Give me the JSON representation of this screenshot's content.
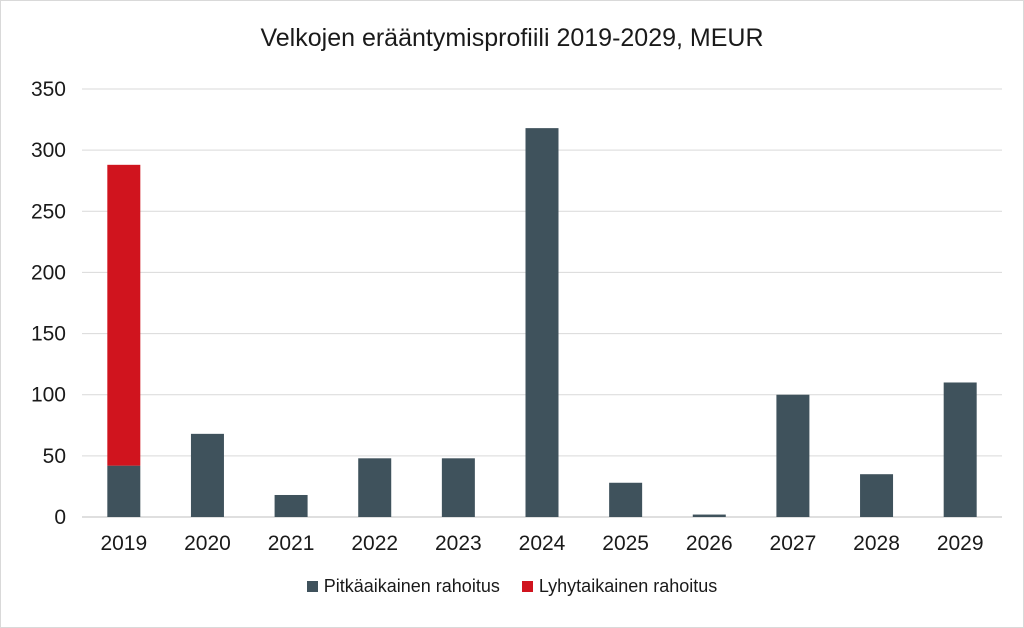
{
  "chart_data": {
    "type": "bar",
    "stacked": true,
    "title": "Velkojen erääntymisprofiili 2019-2029, MEUR",
    "categories": [
      "2019",
      "2020",
      "2021",
      "2022",
      "2023",
      "2024",
      "2025",
      "2026",
      "2027",
      "2028",
      "2029"
    ],
    "series": [
      {
        "name": "Pitkäaikainen rahoitus",
        "color": "#3f525c",
        "values": [
          42,
          68,
          18,
          48,
          48,
          318,
          28,
          2,
          100,
          35,
          110
        ]
      },
      {
        "name": "Lyhytaikainen rahoitus",
        "color": "#d0141e",
        "values": [
          246,
          0,
          0,
          0,
          0,
          0,
          0,
          0,
          0,
          0,
          0
        ]
      }
    ],
    "ylim": [
      0,
      350
    ],
    "yticks": [
      0,
      50,
      100,
      150,
      200,
      250,
      300,
      350
    ],
    "grid": true,
    "legend": "bottom",
    "xlabel": "",
    "ylabel": ""
  }
}
